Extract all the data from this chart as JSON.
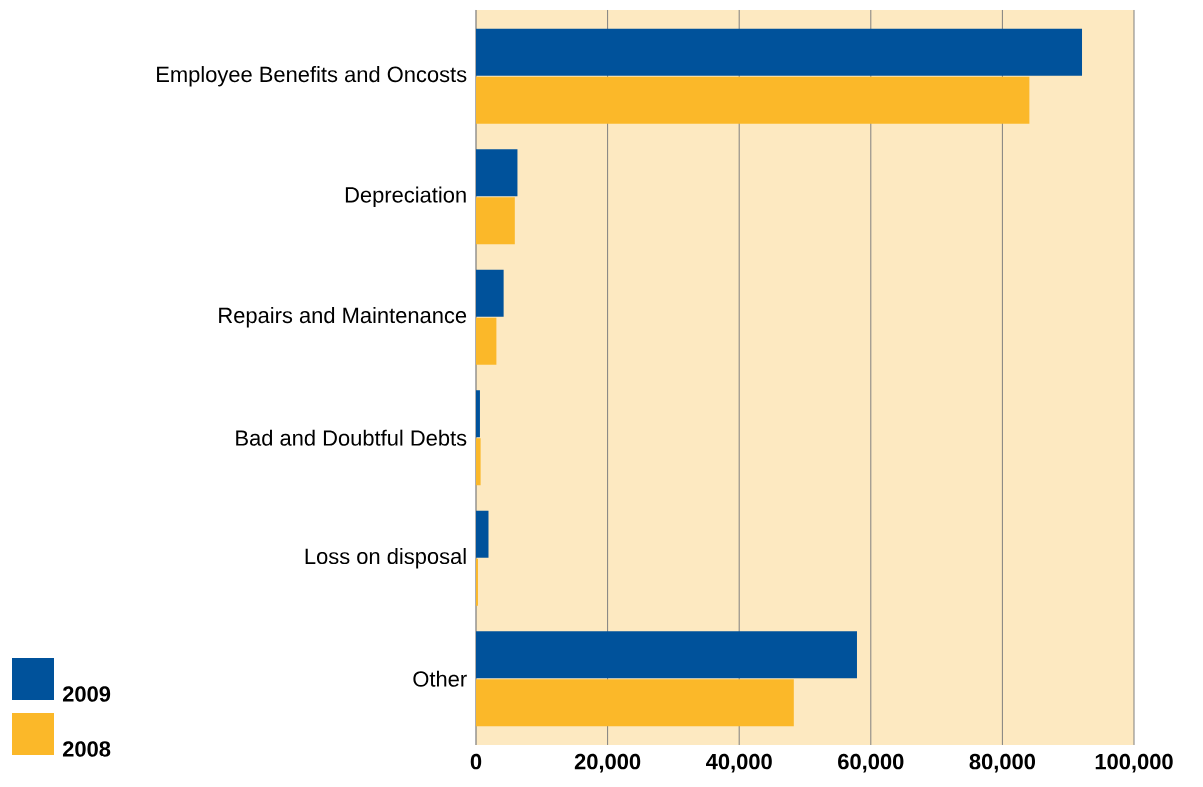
{
  "chart_data": {
    "type": "bar",
    "orientation": "horizontal",
    "categories": [
      "Employee Benefits and Oncosts",
      "Depreciation",
      "Repairs and Maintenance",
      "Bad and Doubtful Debts",
      "Loss on disposal",
      "Other"
    ],
    "series": [
      {
        "name": "2009",
        "color": "#00529b",
        "values": [
          92100,
          6300,
          4200,
          600,
          1900,
          57900
        ]
      },
      {
        "name": "2008",
        "color": "#fbb829",
        "values": [
          84100,
          5900,
          3100,
          700,
          300,
          48300
        ]
      }
    ],
    "xlim": [
      0,
      100000
    ],
    "xticks": [
      {
        "value": 0,
        "label": "0"
      },
      {
        "value": 20000,
        "label": "20,000"
      },
      {
        "value": 40000,
        "label": "40,000"
      },
      {
        "value": 60000,
        "label": "60,000"
      },
      {
        "value": 80000,
        "label": "80,000"
      },
      {
        "value": 100000,
        "label": "100,000"
      }
    ],
    "grid": "x",
    "legend": "bottom left"
  }
}
